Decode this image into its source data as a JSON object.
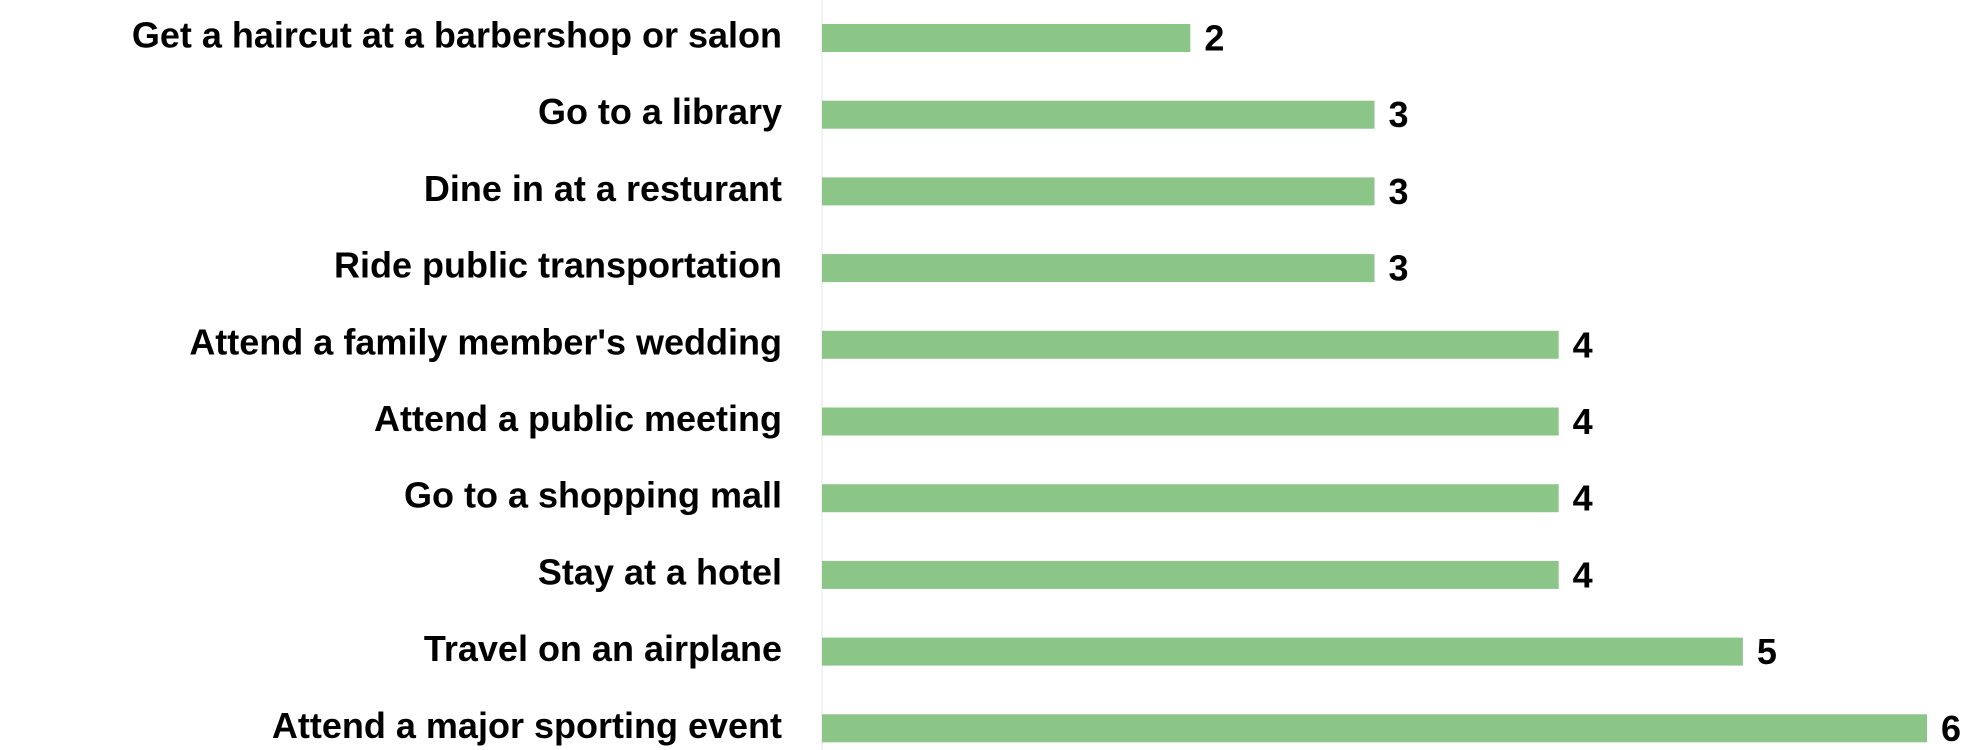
{
  "chart_data": {
    "type": "bar",
    "orientation": "horizontal",
    "categories": [
      "Get a haircut at a barbershop or salon",
      "Go to a library",
      "Dine in at a resturant",
      "Ride public transportation",
      "Attend a family member's wedding",
      "Attend a public meeting",
      "Go to a shopping mall",
      "Stay at a hotel",
      "Travel on an airplane",
      "Attend a major sporting event"
    ],
    "values": [
      2,
      3,
      3,
      3,
      4,
      4,
      4,
      4,
      5,
      6
    ],
    "color": "#8bc587"
  }
}
